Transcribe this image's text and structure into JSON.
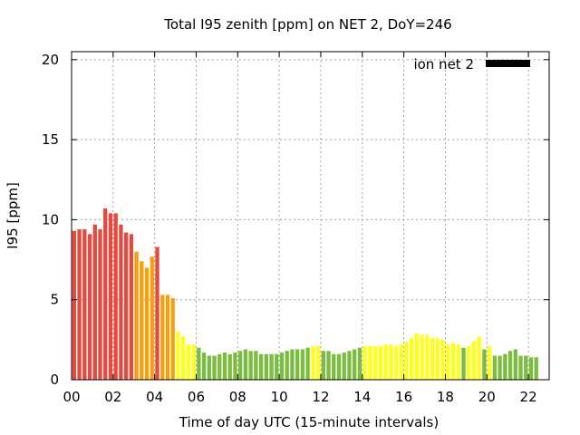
{
  "chart_data": {
    "type": "bar",
    "title": "Total I95 zenith [ppm] on NET 2, DoY=246",
    "xlabel": "Time of day UTC (15-minute intervals)",
    "ylabel": "I95 [ppm]",
    "ylim": [
      0,
      20.5
    ],
    "xlim": [
      0,
      23
    ],
    "grid": true,
    "legend": {
      "label": "ion net 2",
      "color": "#000000",
      "position": "top-right"
    },
    "x_ticks": [
      "00",
      "02",
      "04",
      "06",
      "08",
      "10",
      "12",
      "14",
      "16",
      "18",
      "20",
      "22"
    ],
    "y_ticks": [
      "0",
      "5",
      "10",
      "15",
      "20"
    ],
    "interval_hours": 0.25,
    "values": [
      9.3,
      9.4,
      9.4,
      9.1,
      9.7,
      9.4,
      10.7,
      10.4,
      10.4,
      9.7,
      9.2,
      9.1,
      8.0,
      7.4,
      7.0,
      7.7,
      8.3,
      5.3,
      5.3,
      5.1,
      3.0,
      2.7,
      2.2,
      2.2,
      2.0,
      1.7,
      1.5,
      1.5,
      1.6,
      1.7,
      1.6,
      1.7,
      1.8,
      1.9,
      1.8,
      1.8,
      1.6,
      1.6,
      1.6,
      1.6,
      1.7,
      1.8,
      1.9,
      1.9,
      1.9,
      2.0,
      2.1,
      2.1,
      1.8,
      1.8,
      1.6,
      1.6,
      1.7,
      1.8,
      1.9,
      2.0,
      2.1,
      2.1,
      2.1,
      2.1,
      2.2,
      2.2,
      2.1,
      2.2,
      2.4,
      2.6,
      2.9,
      2.8,
      2.8,
      2.6,
      2.6,
      2.5,
      2.2,
      2.3,
      2.2,
      2.0,
      2.1,
      2.4,
      2.7,
      1.9,
      2.1,
      1.5,
      1.5,
      1.6,
      1.8,
      1.9,
      1.5,
      1.5,
      1.4,
      1.4
    ],
    "colors": [
      "#e34a40",
      "#e34a40",
      "#e34a40",
      "#e34a40",
      "#e34a40",
      "#e34a40",
      "#e34a40",
      "#e34a40",
      "#e34a40",
      "#e34a40",
      "#e34a40",
      "#e34a40",
      "#f5a00f",
      "#f5a00f",
      "#f5a00f",
      "#f5a00f",
      "#e34a40",
      "#f5a00f",
      "#f5a00f",
      "#f5a00f",
      "#ffff1e",
      "#ffff1e",
      "#ffff1e",
      "#ffff1e",
      "#7cbd41",
      "#7cbd41",
      "#7cbd41",
      "#7cbd41",
      "#7cbd41",
      "#7cbd41",
      "#7cbd41",
      "#7cbd41",
      "#7cbd41",
      "#7cbd41",
      "#7cbd41",
      "#7cbd41",
      "#7cbd41",
      "#7cbd41",
      "#7cbd41",
      "#7cbd41",
      "#7cbd41",
      "#7cbd41",
      "#7cbd41",
      "#7cbd41",
      "#7cbd41",
      "#7cbd41",
      "#ffff1e",
      "#ffff1e",
      "#7cbd41",
      "#7cbd41",
      "#7cbd41",
      "#7cbd41",
      "#7cbd41",
      "#7cbd41",
      "#7cbd41",
      "#7cbd41",
      "#ffff1e",
      "#ffff1e",
      "#ffff1e",
      "#ffff1e",
      "#ffff1e",
      "#ffff1e",
      "#ffff1e",
      "#ffff1e",
      "#ffff1e",
      "#ffff1e",
      "#ffff1e",
      "#ffff1e",
      "#ffff1e",
      "#ffff1e",
      "#ffff1e",
      "#ffff1e",
      "#ffff1e",
      "#ffff1e",
      "#ffff1e",
      "#7cbd41",
      "#ffff1e",
      "#ffff1e",
      "#ffff1e",
      "#7cbd41",
      "#ffff1e",
      "#7cbd41",
      "#7cbd41",
      "#7cbd41",
      "#7cbd41",
      "#7cbd41",
      "#7cbd41",
      "#7cbd41",
      "#7cbd41",
      "#7cbd41"
    ]
  }
}
